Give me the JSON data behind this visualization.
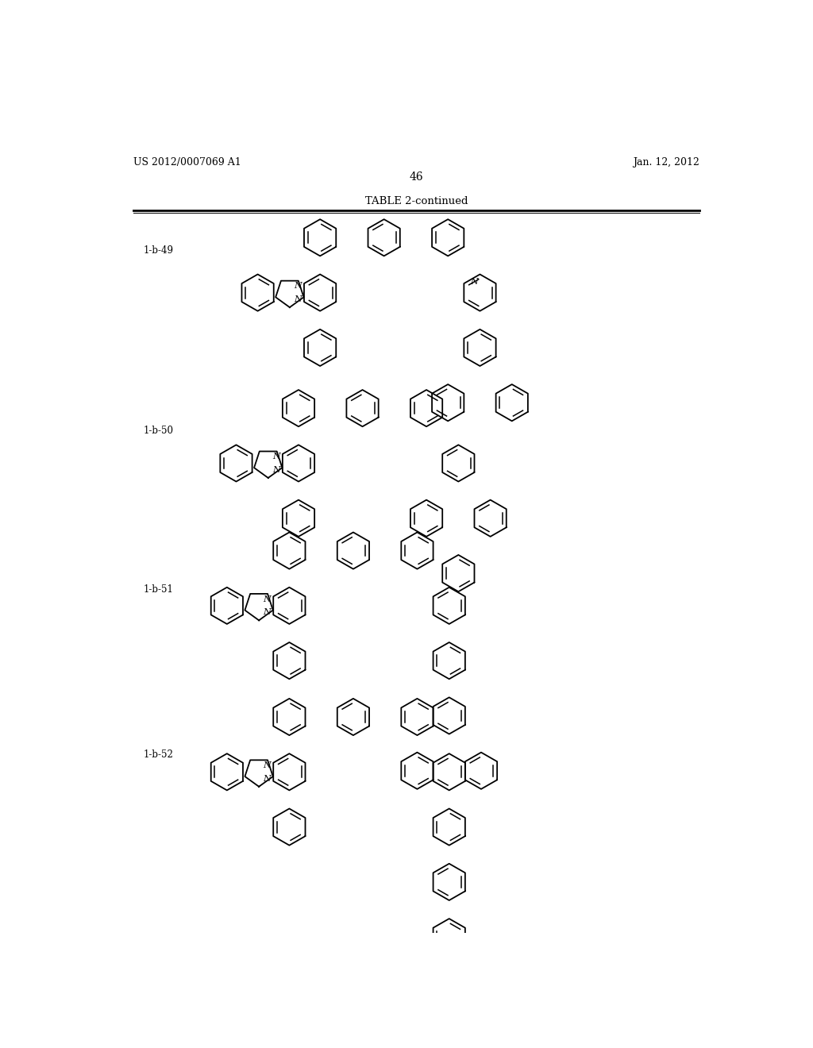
{
  "page_header_left": "US 2012/0007069 A1",
  "page_header_right": "Jan. 12, 2012",
  "page_number": "46",
  "table_title": "TABLE 2-continued",
  "background_color": "#ffffff",
  "text_color": "#000000",
  "compounds": [
    {
      "label": "1-b-49"
    },
    {
      "label": "1-b-50"
    },
    {
      "label": "1-b-51"
    },
    {
      "label": "1-b-52"
    }
  ]
}
